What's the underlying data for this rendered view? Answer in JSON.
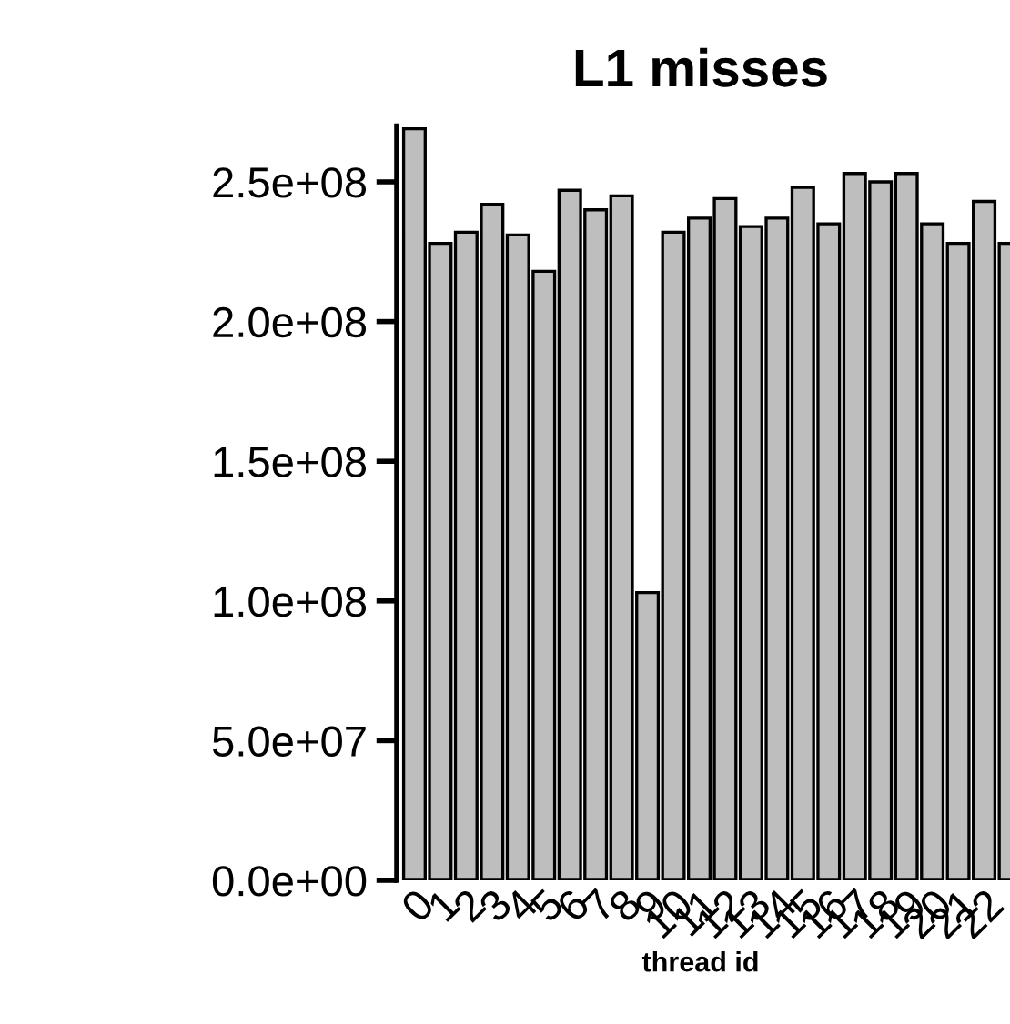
{
  "chart_data": {
    "type": "bar",
    "title": "L1 misses",
    "xlabel": "thread id",
    "categories": [
      "0",
      "1",
      "2",
      "3",
      "4",
      "5",
      "6",
      "7",
      "8",
      "9",
      "10",
      "11",
      "12",
      "13",
      "14",
      "15",
      "16",
      "17",
      "18",
      "19",
      "20",
      "21",
      "22",
      null
    ],
    "values": [
      269000000.0,
      228000000.0,
      232000000.0,
      242000000.0,
      231000000.0,
      218000000.0,
      247000000.0,
      240000000.0,
      245000000.0,
      103000000.0,
      232000000.0,
      237000000.0,
      244000000.0,
      234000000.0,
      237000000.0,
      248000000.0,
      235000000.0,
      253000000.0,
      250000000.0,
      253000000.0,
      235000000.0,
      228000000.0,
      243000000.0,
      228000000.0
    ],
    "color": "#bebebe",
    "ylim": [
      0,
      270000000.0
    ],
    "yticks": [
      {
        "value": 0,
        "label": "0.0e+00"
      },
      {
        "value": 50000000.0,
        "label": "5.0e+07"
      },
      {
        "value": 100000000.0,
        "label": "1.0e+08"
      },
      {
        "value": 150000000.0,
        "label": "1.5e+08"
      },
      {
        "value": 200000000.0,
        "label": "2.0e+08"
      },
      {
        "value": 250000000.0,
        "label": "2.5e+08"
      }
    ],
    "grid": false
  }
}
